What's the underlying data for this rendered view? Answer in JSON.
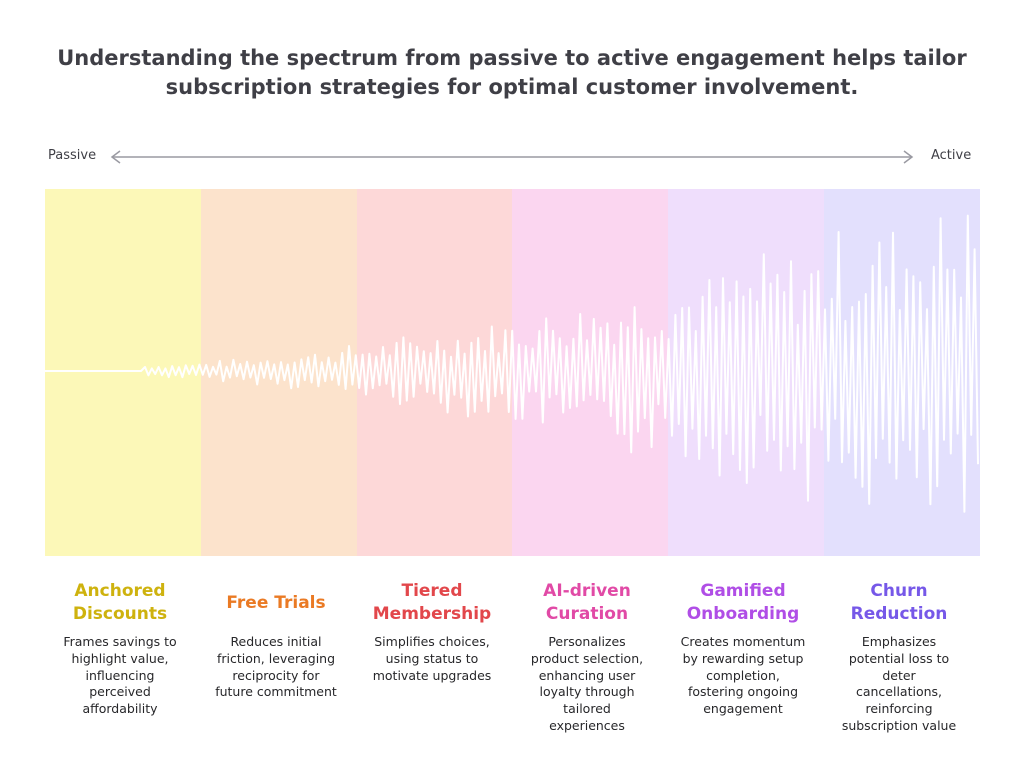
{
  "title": {
    "line1": "Understanding the spectrum from passive to active engagement helps tailor",
    "line2": "subscription strategies for optimal customer involvement."
  },
  "axis": {
    "left_label": "Passive",
    "right_label": "Active"
  },
  "stages": [
    {
      "title": "Anchored\nDiscounts",
      "description": "Frames savings to\nhighlight value,\ninfluencing\nperceived\naffordability",
      "band_color": "#fcf8b8",
      "title_color": "#ceb20e"
    },
    {
      "title": "Free Trials",
      "description": "Reduces initial\nfriction, leveraging\nreciprocity for\nfuture commitment",
      "band_color": "#fce3cc",
      "title_color": "#ea7a24"
    },
    {
      "title": "Tiered\nMembership",
      "description": "Simplifies choices,\nusing status to\nmotivate upgrades",
      "band_color": "#fdd8d8",
      "title_color": "#e2474b"
    },
    {
      "title": "AI-driven\nCuration",
      "description": "Personalizes\nproduct selection,\nenhancing user\nloyalty through\ntailored\nexperiences",
      "band_color": "#fbd6f0",
      "title_color": "#e14aa6"
    },
    {
      "title": "Gamified\nOnboarding",
      "description": "Creates momentum\nby rewarding setup\ncompletion,\nfostering ongoing\nengagement",
      "band_color": "#efdefc",
      "title_color": "#b04ee6"
    },
    {
      "title": "Churn\nReduction",
      "description": "Emphasizes\npotential loss to\ndeter\ncancellations,\nreinforcing\nsubscription value",
      "band_color": "#e3e0fd",
      "title_color": "#7658e8"
    }
  ],
  "colors": {
    "title_text": "#3f3f46",
    "arrow": "#9a9aa2",
    "wave": "#ffffff"
  }
}
